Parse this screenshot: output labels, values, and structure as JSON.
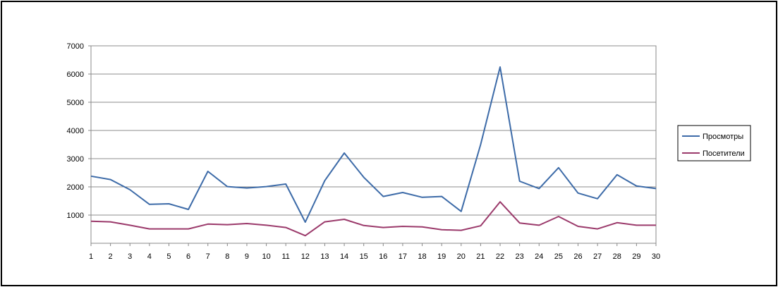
{
  "chart_data": {
    "type": "line",
    "title": "",
    "xlabel": "",
    "ylabel": "",
    "x": [
      1,
      2,
      3,
      4,
      5,
      6,
      7,
      8,
      9,
      10,
      11,
      12,
      13,
      14,
      15,
      16,
      17,
      18,
      19,
      20,
      21,
      22,
      23,
      24,
      25,
      26,
      27,
      28,
      29,
      30
    ],
    "ylim": [
      0,
      7000
    ],
    "yticks": [
      1000,
      2000,
      3000,
      4000,
      5000,
      6000,
      7000
    ],
    "grid": true,
    "legend_position": "right",
    "series": [
      {
        "name": "Просмотры",
        "color": "#3D6BA8",
        "values": [
          2380,
          2260,
          1900,
          1380,
          1400,
          1200,
          2550,
          2010,
          1960,
          2010,
          2100,
          750,
          2220,
          3200,
          2340,
          1660,
          1800,
          1630,
          1660,
          1130,
          3500,
          6250,
          2200,
          1940,
          2680,
          1780,
          1580,
          2430,
          2030,
          1940
        ]
      },
      {
        "name": "Посетители",
        "color": "#9B3A6B",
        "values": [
          780,
          760,
          640,
          510,
          510,
          510,
          680,
          660,
          700,
          640,
          560,
          270,
          760,
          850,
          630,
          560,
          600,
          580,
          480,
          460,
          620,
          1470,
          720,
          640,
          950,
          600,
          510,
          730,
          640,
          640
        ]
      }
    ]
  }
}
